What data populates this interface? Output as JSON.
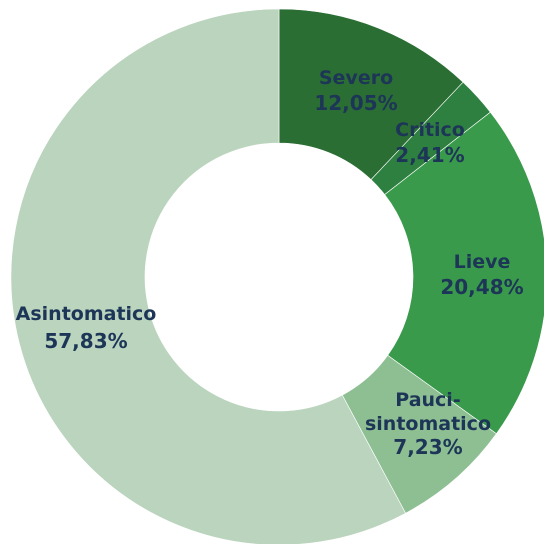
{
  "chart_data": {
    "type": "pie",
    "variant": "donut",
    "title": "",
    "legend": "none",
    "slices": [
      {
        "label": "Severo",
        "value": 12.05,
        "display": "12,05%",
        "color": "#2a6e34"
      },
      {
        "label": "Critico",
        "value": 2.41,
        "display": "2,41%",
        "color": "#2e8040"
      },
      {
        "label": "Lieve",
        "value": 20.48,
        "display": "20,48%",
        "color": "#3a9a4c"
      },
      {
        "label": "Pauci-sintomatico",
        "label_lines": [
          "Pauci-",
          "sintomatico"
        ],
        "value": 7.23,
        "display": "7,23%",
        "color": "#8ebf93"
      },
      {
        "label": "Asintomatico",
        "value": 57.83,
        "display": "57,83%",
        "color": "#bad4bd"
      }
    ]
  }
}
